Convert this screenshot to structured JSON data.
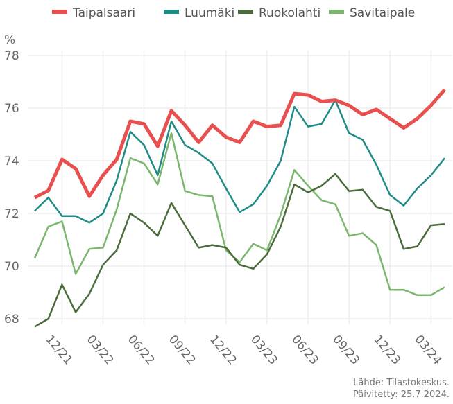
{
  "chart_data": {
    "type": "line",
    "ylabel": "%",
    "source": [
      "Lähde: Tilastokeskus.",
      "Päivitetty: 25.7.2024."
    ],
    "categories": [
      null,
      null,
      "12/21",
      null,
      null,
      "03/22",
      null,
      null,
      "06/22",
      null,
      null,
      "09/22",
      null,
      null,
      "12/22",
      null,
      null,
      "03/23",
      null,
      null,
      "06/23",
      null,
      null,
      "09/23",
      null,
      null,
      "12/23",
      null,
      null,
      "03/24",
      null
    ],
    "series": [
      {
        "name": "Taipalsaari",
        "color": "#e8504f",
        "values": [
          72.6,
          72.87,
          74.05,
          73.7,
          72.65,
          73.45,
          74.05,
          75.5,
          75.4,
          74.55,
          75.9,
          75.35,
          74.7,
          75.35,
          74.9,
          74.7,
          75.5,
          75.3,
          75.35,
          76.55,
          76.5,
          76.25,
          76.3,
          76.1,
          75.75,
          75.95,
          75.6,
          75.25,
          75.6,
          76.1,
          76.7
        ]
      },
      {
        "name": "Luumäki",
        "color": "#1f8b87",
        "values": [
          72.1,
          72.6,
          71.9,
          71.9,
          71.65,
          72.0,
          73.25,
          75.1,
          74.6,
          73.45,
          75.5,
          74.6,
          74.3,
          73.9,
          72.95,
          72.05,
          72.35,
          73.05,
          74.0,
          76.05,
          75.3,
          75.4,
          76.3,
          75.05,
          74.8,
          73.85,
          72.7,
          72.3,
          72.95,
          73.45,
          74.1
        ]
      },
      {
        "name": "Ruokolahti",
        "color": "#4a6b3a",
        "values": [
          67.7,
          68.0,
          69.3,
          68.25,
          68.95,
          70.05,
          70.6,
          72.0,
          71.65,
          71.15,
          72.4,
          71.55,
          70.7,
          70.8,
          70.7,
          70.05,
          69.9,
          70.45,
          71.5,
          73.1,
          72.8,
          73.05,
          73.5,
          72.85,
          72.9,
          72.25,
          72.1,
          70.65,
          70.75,
          71.55,
          71.6
        ]
      },
      {
        "name": "Savitaipale",
        "color": "#7ab66c",
        "values": [
          70.3,
          71.5,
          71.7,
          69.7,
          70.65,
          70.7,
          72.15,
          74.1,
          73.9,
          73.1,
          75.05,
          72.85,
          72.7,
          72.65,
          70.6,
          70.15,
          70.85,
          70.6,
          71.95,
          73.65,
          73.05,
          72.5,
          72.35,
          71.15,
          71.25,
          70.8,
          69.1,
          69.1,
          68.9,
          68.9,
          69.2
        ]
      }
    ],
    "ylim": [
      67.8,
      78.2
    ],
    "yticks": [
      68,
      70,
      72,
      74,
      76,
      78
    ],
    "grid": true,
    "legend": "top"
  }
}
